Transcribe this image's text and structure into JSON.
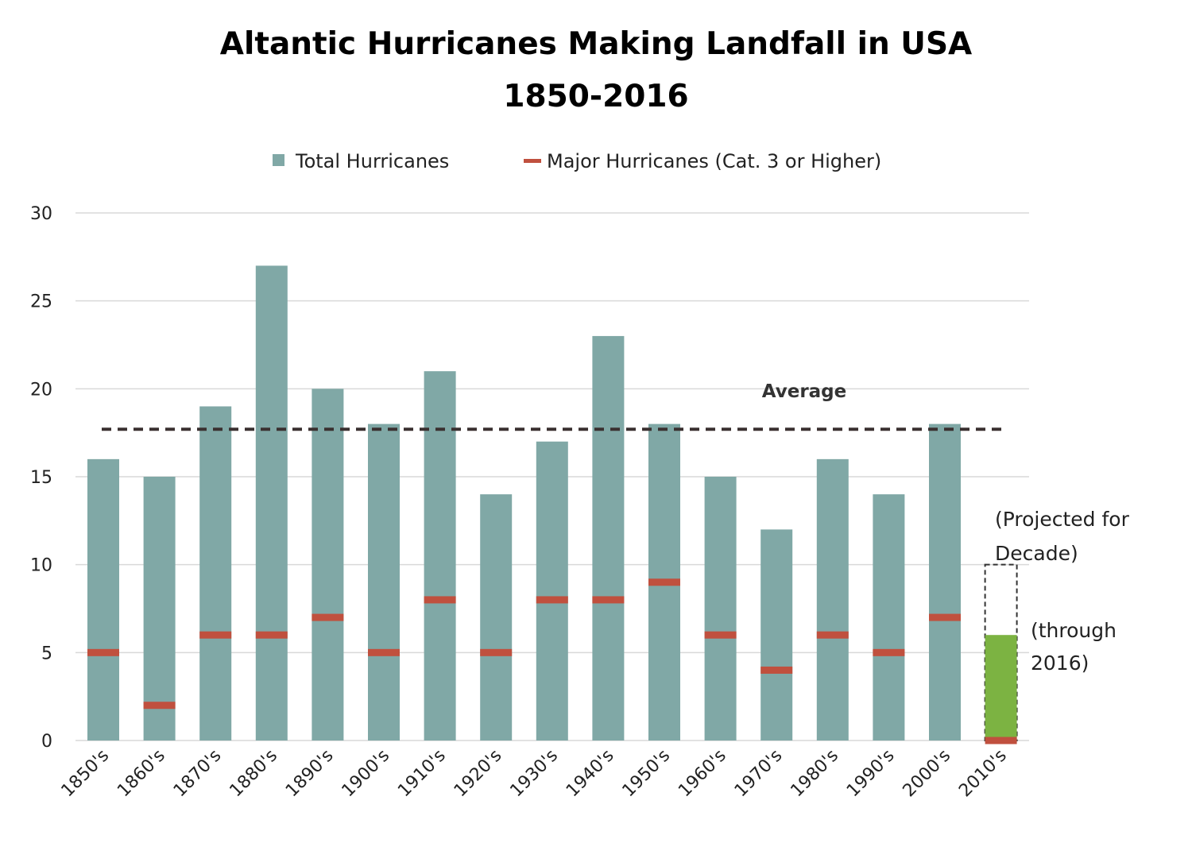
{
  "chart_data": {
    "type": "bar",
    "title_line1": "Altantic Hurricanes Making Landfall in USA",
    "title_line2": "1850-2016",
    "categories": [
      "1850's",
      "1860's",
      "1870's",
      "1880's",
      "1890's",
      "1900's",
      "1910's",
      "1920's",
      "1930's",
      "1940's",
      "1950's",
      "1960's",
      "1970's",
      "1980's",
      "1990's",
      "2000's",
      "2010's"
    ],
    "series": [
      {
        "name": "Total Hurricanes",
        "values": [
          16,
          15,
          19,
          27,
          20,
          18,
          21,
          14,
          17,
          23,
          18,
          15,
          12,
          16,
          14,
          18,
          6
        ]
      },
      {
        "name": "Major Hurricanes (Cat. 3 or Higher)",
        "values": [
          5,
          2,
          6,
          6,
          7,
          5,
          8,
          5,
          8,
          8,
          9,
          6,
          4,
          6,
          5,
          7,
          0
        ]
      }
    ],
    "highlight": {
      "category": "2010's",
      "current_value": 6,
      "projected_value": 10
    },
    "average": {
      "label": "Average",
      "value": 17.7
    },
    "ylim": [
      0,
      30
    ],
    "yticks": [
      0,
      5,
      10,
      15,
      20,
      25,
      30
    ],
    "annotations": {
      "projected_line1": "(Projected for",
      "projected_line2": "Decade)",
      "through_line1": "(through",
      "through_line2": "2016)"
    },
    "legend": [
      "Total Hurricanes",
      "Major Hurricanes (Cat. 3 or Higher)"
    ],
    "colors": {
      "total": "#80a8a6",
      "major": "#c0503e",
      "current": "#7cb342",
      "average": "#3a3030",
      "grid": "#d9d9d9"
    }
  }
}
